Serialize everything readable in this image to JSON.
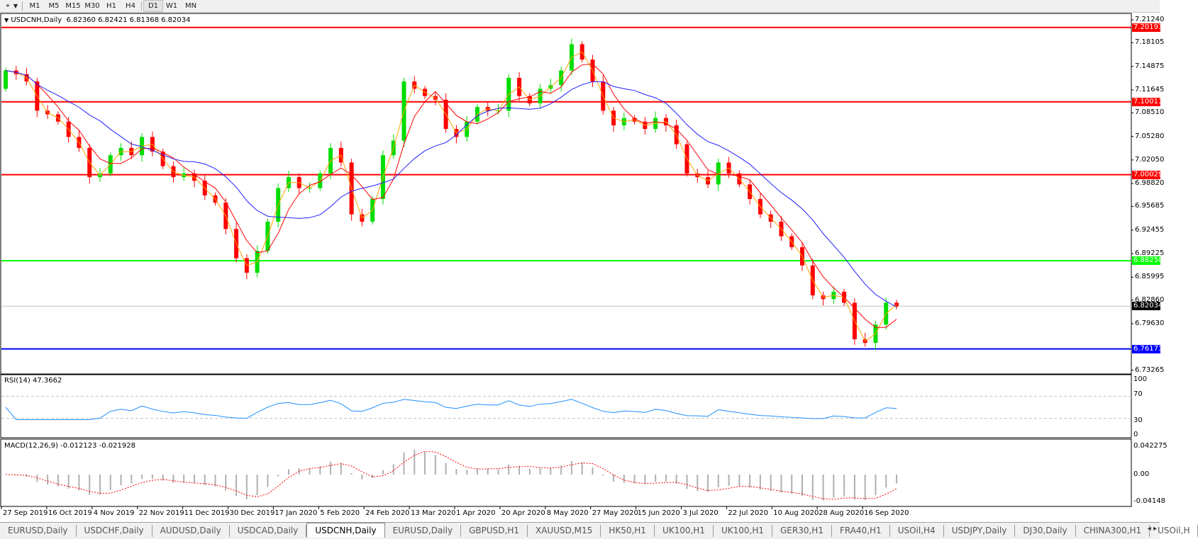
{
  "toolbar": {
    "timeframes": [
      "M1",
      "M5",
      "M15",
      "M30",
      "H1",
      "H4",
      "D1",
      "W1",
      "MN"
    ],
    "active_timeframe": "D1"
  },
  "header": {
    "symbol": "USDCNH,Daily",
    "ohlc": "6.82360 6.82421 6.81368 6.82034"
  },
  "rsi": {
    "label": "RSI(14) 47.3662",
    "ticks": [
      "100",
      "70",
      "30",
      "0"
    ]
  },
  "macd": {
    "label": "MACD(12,26,9) -0.012123 -0.021928",
    "ticks": [
      "0.042275",
      "0.00",
      "-0.04148"
    ]
  },
  "tabs": [
    "EURUSD,Daily",
    "USDCHF,Daily",
    "AUDUSD,Daily",
    "USDCAD,Daily",
    "USDCNH,Daily",
    "EURUSD,Daily",
    "GBPUSD,H1",
    "XAUUSD,M15",
    "HK50,H1",
    "UK100,H1",
    "UK100,H1",
    "GER30,H1",
    "FRA40,H1",
    "USOil,H4",
    "USDJPY,Daily",
    "DJ30,Daily",
    "CHINA300,H1",
    "USOil,H"
  ],
  "active_tab": 4,
  "colors": {
    "bull": "#00dd00",
    "bear": "#ff0000",
    "ma_fast": "#ffa500",
    "ma_mid": "#ff0000",
    "ma_slow": "#2020ff",
    "rsi": "#1e90ff",
    "macd_hist": "#b0b0b0",
    "macd_signal": "#ff0000"
  },
  "chart_data": {
    "type": "candlestick",
    "symbol": "USDCNH",
    "timeframe": "Daily",
    "ylim": [
      6.73265,
      7.2124
    ],
    "price_ticks": [
      "7.21240",
      "7.18105",
      "7.14875",
      "7.11645",
      "7.08510",
      "7.05280",
      "7.02050",
      "6.98820",
      "6.95685",
      "6.92455",
      "6.89225",
      "6.85995",
      "6.82860",
      "6.79630",
      "6.73265"
    ],
    "date_ticks": [
      "27 Sep 2019",
      "16 Oct 2019",
      "4 Nov 2019",
      "22 Nov 2019",
      "11 Dec 2019",
      "30 Dec 2019",
      "17 Jan 2020",
      "5 Feb 2020",
      "24 Feb 2020",
      "13 Mar 2020",
      "1 Apr 2020",
      "20 Apr 2020",
      "8 May 2020",
      "27 May 2020",
      "15 Jun 2020",
      "3 Jul 2020",
      "22 Jul 2020",
      "10 Aug 2020",
      "28 Aug 2020",
      "16 Sep 2020"
    ],
    "close": [
      7.143,
      7.138,
      7.128,
      7.088,
      7.083,
      7.073,
      7.052,
      7.037,
      6.997,
      7.002,
      7.027,
      7.037,
      7.027,
      7.052,
      7.032,
      7.012,
      6.997,
      7.002,
      6.992,
      6.972,
      6.962,
      6.926,
      6.886,
      6.866,
      6.896,
      6.936,
      6.982,
      6.997,
      6.982,
      6.982,
      7.002,
      7.037,
      7.017,
      6.946,
      6.936,
      6.967,
      7.027,
      7.047,
      7.128,
      7.118,
      7.108,
      7.103,
      7.063,
      7.052,
      7.073,
      7.093,
      7.088,
      7.088,
      7.133,
      7.108,
      7.098,
      7.118,
      7.123,
      7.143,
      7.179,
      7.158,
      7.128,
      7.088,
      7.068,
      7.078,
      7.073,
      7.063,
      7.078,
      7.068,
      7.042,
      7.002,
      6.997,
      6.987,
      7.017,
      7.002,
      6.987,
      6.967,
      6.946,
      6.936,
      6.916,
      6.901,
      6.876,
      6.835,
      6.83,
      6.84,
      6.825,
      6.775,
      6.77,
      6.795,
      6.825,
      6.82
    ],
    "levels": [
      {
        "price": "7.20193",
        "color": "#ff0000"
      },
      {
        "price": "7.10011",
        "color": "#ff0000"
      },
      {
        "price": "7.00029",
        "color": "#ff0000"
      },
      {
        "price": "6.88250",
        "color": "#00ff00"
      },
      {
        "price": "6.82034",
        "color": "#000000",
        "current": true
      },
      {
        "price": "6.76171",
        "color": "#0000ff"
      }
    ],
    "indicators": [
      "RSI(14) 47.3662",
      "MACD(12,26,9) -0.012123 -0.021928"
    ],
    "rsi_levels": [
      70,
      30
    ],
    "grid": false
  }
}
